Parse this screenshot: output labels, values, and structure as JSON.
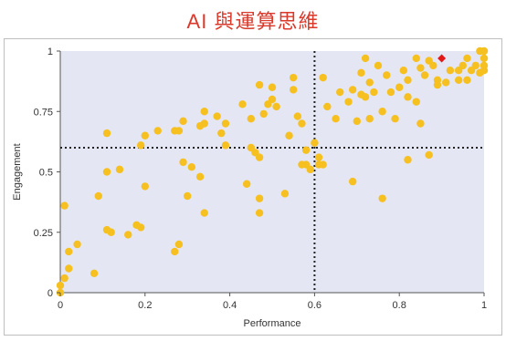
{
  "page": {
    "title": "AI 與運算思維"
  },
  "chart_data": {
    "type": "scatter",
    "title": "",
    "xlabel": "Performance",
    "ylabel": "Engagement",
    "xlim": [
      0,
      1
    ],
    "ylim": [
      0,
      1
    ],
    "x_ticks": [
      "0",
      "0.2",
      "0.4",
      "0.6",
      "0.8",
      "1"
    ],
    "y_ticks": [
      "0",
      "0.25",
      "0.5",
      "0.75",
      "1"
    ],
    "reference_lines": {
      "x": 0.6,
      "y": 0.6,
      "style": "dotted"
    },
    "grid": false,
    "colors": {
      "plot_bg": "#e4e6f3",
      "point": "#f5c020",
      "highlight": "#e01818"
    },
    "highlight_point": {
      "x": 0.9,
      "y": 0.97
    },
    "series": [
      {
        "points": [
          [
            0.0,
            0.0
          ],
          [
            0.0,
            0.03
          ],
          [
            0.01,
            0.06
          ],
          [
            0.01,
            0.36
          ],
          [
            0.02,
            0.1
          ],
          [
            0.02,
            0.17
          ],
          [
            0.04,
            0.2
          ],
          [
            0.08,
            0.08
          ],
          [
            0.09,
            0.4
          ],
          [
            0.11,
            0.26
          ],
          [
            0.11,
            0.5
          ],
          [
            0.11,
            0.66
          ],
          [
            0.12,
            0.25
          ],
          [
            0.14,
            0.51
          ],
          [
            0.16,
            0.24
          ],
          [
            0.18,
            0.28
          ],
          [
            0.19,
            0.27
          ],
          [
            0.19,
            0.61
          ],
          [
            0.2,
            0.44
          ],
          [
            0.2,
            0.65
          ],
          [
            0.23,
            0.67
          ],
          [
            0.27,
            0.17
          ],
          [
            0.27,
            0.67
          ],
          [
            0.28,
            0.2
          ],
          [
            0.28,
            0.67
          ],
          [
            0.29,
            0.54
          ],
          [
            0.29,
            0.71
          ],
          [
            0.3,
            0.4
          ],
          [
            0.31,
            0.52
          ],
          [
            0.33,
            0.69
          ],
          [
            0.33,
            0.48
          ],
          [
            0.34,
            0.7
          ],
          [
            0.34,
            0.75
          ],
          [
            0.34,
            0.33
          ],
          [
            0.37,
            0.73
          ],
          [
            0.38,
            0.66
          ],
          [
            0.39,
            0.7
          ],
          [
            0.39,
            0.61
          ],
          [
            0.43,
            0.78
          ],
          [
            0.44,
            0.45
          ],
          [
            0.45,
            0.72
          ],
          [
            0.45,
            0.6
          ],
          [
            0.46,
            0.58
          ],
          [
            0.47,
            0.86
          ],
          [
            0.47,
            0.33
          ],
          [
            0.47,
            0.39
          ],
          [
            0.47,
            0.56
          ],
          [
            0.48,
            0.74
          ],
          [
            0.49,
            0.78
          ],
          [
            0.5,
            0.8
          ],
          [
            0.5,
            0.85
          ],
          [
            0.51,
            0.77
          ],
          [
            0.53,
            0.41
          ],
          [
            0.54,
            0.65
          ],
          [
            0.55,
            0.84
          ],
          [
            0.55,
            0.89
          ],
          [
            0.56,
            0.73
          ],
          [
            0.57,
            0.53
          ],
          [
            0.57,
            0.7
          ],
          [
            0.58,
            0.53
          ],
          [
            0.58,
            0.59
          ],
          [
            0.59,
            0.51
          ],
          [
            0.6,
            0.62
          ],
          [
            0.61,
            0.53
          ],
          [
            0.61,
            0.56
          ],
          [
            0.62,
            0.53
          ],
          [
            0.62,
            0.89
          ],
          [
            0.63,
            0.77
          ],
          [
            0.65,
            0.72
          ],
          [
            0.66,
            0.83
          ],
          [
            0.68,
            0.79
          ],
          [
            0.69,
            0.46
          ],
          [
            0.69,
            0.84
          ],
          [
            0.7,
            0.71
          ],
          [
            0.71,
            0.82
          ],
          [
            0.71,
            0.91
          ],
          [
            0.72,
            0.81
          ],
          [
            0.72,
            0.97
          ],
          [
            0.73,
            0.87
          ],
          [
            0.73,
            0.72
          ],
          [
            0.74,
            0.83
          ],
          [
            0.75,
            0.94
          ],
          [
            0.76,
            0.75
          ],
          [
            0.76,
            0.39
          ],
          [
            0.77,
            0.9
          ],
          [
            0.78,
            0.83
          ],
          [
            0.79,
            0.72
          ],
          [
            0.8,
            0.85
          ],
          [
            0.81,
            0.92
          ],
          [
            0.82,
            0.55
          ],
          [
            0.82,
            0.81
          ],
          [
            0.82,
            0.88
          ],
          [
            0.84,
            0.97
          ],
          [
            0.84,
            0.79
          ],
          [
            0.85,
            0.7
          ],
          [
            0.85,
            0.93
          ],
          [
            0.86,
            0.9
          ],
          [
            0.87,
            0.96
          ],
          [
            0.87,
            0.57
          ],
          [
            0.88,
            0.94
          ],
          [
            0.89,
            0.88
          ],
          [
            0.89,
            0.86
          ],
          [
            0.91,
            0.87
          ],
          [
            0.92,
            0.92
          ],
          [
            0.94,
            0.88
          ],
          [
            0.94,
            0.92
          ],
          [
            0.95,
            0.94
          ],
          [
            0.96,
            0.88
          ],
          [
            0.96,
            0.97
          ],
          [
            0.97,
            0.92
          ],
          [
            0.98,
            0.94
          ],
          [
            0.99,
            0.91
          ],
          [
            0.99,
            1.0
          ],
          [
            1.0,
            0.97
          ],
          [
            1.0,
            0.94
          ],
          [
            1.0,
            1.0
          ],
          [
            1.0,
            0.92
          ]
        ]
      }
    ]
  }
}
